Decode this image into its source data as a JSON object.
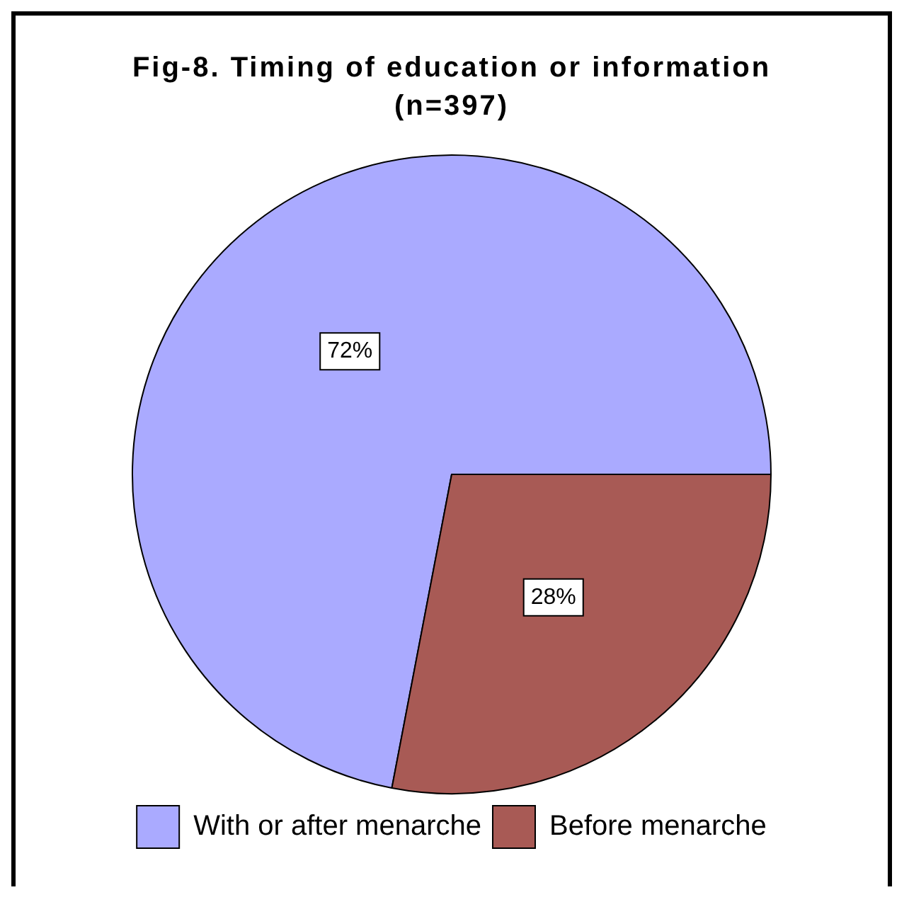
{
  "chart_data": {
    "type": "pie",
    "title": "Fig-8. Timing of education or information (n=397)",
    "categories": [
      "With or after menarche",
      "Before menarche"
    ],
    "values": [
      72,
      28
    ],
    "colors": [
      "#aaaaff",
      "#a85a55"
    ],
    "value_labels": [
      "72%",
      "28%"
    ],
    "legend": "bottom"
  }
}
